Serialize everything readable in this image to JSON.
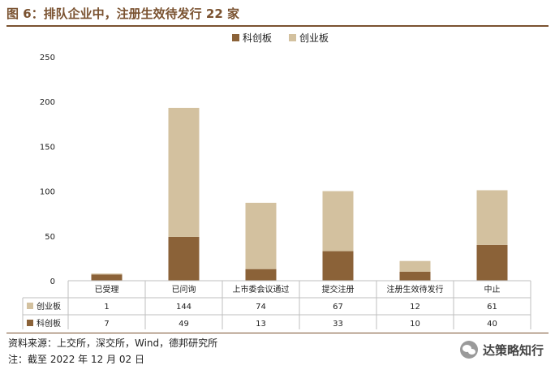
{
  "title": "图 6：排队企业中，注册生效待发行 22 家",
  "source": "资料来源：上交所，深交所，Wind，德邦研究所",
  "note": "注：截至 2022 年 12 月 02 日",
  "brand": {
    "text": "达策略知行",
    "icon": "wechat-icon"
  },
  "colors": {
    "kechuang": "#8b6238",
    "chuangye": "#d3c19f",
    "accent": "#7a5230"
  },
  "chart_data": {
    "type": "bar",
    "stacked": true,
    "categories": [
      "已受理",
      "已问询",
      "上市委会议通过",
      "提交注册",
      "注册生效待发行",
      "中止"
    ],
    "series": [
      {
        "name": "科创板",
        "values": [
          7,
          49,
          13,
          33,
          10,
          40
        ]
      },
      {
        "name": "创业板",
        "values": [
          1,
          144,
          74,
          67,
          12,
          61
        ]
      }
    ],
    "ylim": [
      0,
      250
    ],
    "yticks": [
      0,
      50,
      100,
      150,
      200,
      250
    ],
    "legend": "top-center",
    "data_table": true,
    "table_rows": [
      {
        "name": "创业板",
        "values": [
          1,
          144,
          74,
          67,
          12,
          61
        ]
      },
      {
        "name": "科创板",
        "values": [
          7,
          49,
          13,
          33,
          10,
          40
        ]
      }
    ],
    "grid": false
  }
}
